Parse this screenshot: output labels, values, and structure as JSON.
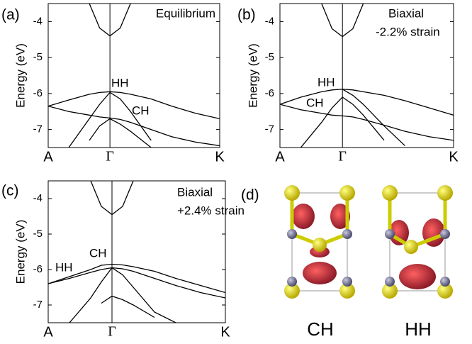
{
  "chart_data": [
    {
      "type": "line",
      "panel_label": "(a)",
      "ylabel": "Energy (eV)",
      "annotations": [
        "Equilibrium",
        "HH",
        "CH"
      ],
      "x": [
        0,
        0.12,
        0.24,
        0.3,
        0.36,
        0.42,
        0.48,
        0.6,
        0.72,
        0.86,
        1
      ],
      "xlim": [
        0,
        1
      ],
      "xticks": [
        {
          "value": 0,
          "label": "A"
        },
        {
          "value": 0.36,
          "label": "Γ"
        },
        {
          "value": 1,
          "label": "K"
        }
      ],
      "ylim": [
        -7.5,
        -3.5
      ],
      "yticks": [
        -7,
        -6,
        -5,
        -4
      ],
      "series": [
        {
          "color": "#000000",
          "values": [
            null,
            null,
            -3.5,
            -4.18,
            -4.4,
            -4.18,
            -3.5,
            null,
            null,
            null,
            null
          ]
        },
        {
          "color": "#000000",
          "values": [
            -6.35,
            -6.18,
            -6.02,
            -5.97,
            -5.95,
            -5.97,
            -6.02,
            -6.15,
            -6.35,
            -6.55,
            -6.7
          ]
        },
        {
          "color": "#000000",
          "values": [
            -6.35,
            -6.5,
            -6.6,
            -6.65,
            -6.68,
            -6.72,
            -6.8,
            -7.0,
            -7.2,
            -7.35,
            -7.45
          ]
        },
        {
          "color": "#000000",
          "values": [
            null,
            -7.5,
            -6.7,
            -6.3,
            -5.97,
            -6.15,
            -6.5,
            -7.3,
            null,
            null,
            null
          ]
        },
        {
          "color": "#000000",
          "values": [
            null,
            null,
            -7.3,
            -6.9,
            -6.7,
            -6.85,
            -7.05,
            -7.5,
            null,
            null,
            null
          ]
        }
      ]
    },
    {
      "type": "line",
      "panel_label": "(b)",
      "ylabel": "Energy (eV)",
      "annotations": [
        "Biaxial",
        "-2.2% strain",
        "HH",
        "CH"
      ],
      "x": [
        0,
        0.12,
        0.24,
        0.3,
        0.36,
        0.42,
        0.48,
        0.6,
        0.72,
        0.86,
        1
      ],
      "xlim": [
        0,
        1
      ],
      "xticks": [
        {
          "value": 0,
          "label": "A"
        },
        {
          "value": 0.36,
          "label": "Γ"
        },
        {
          "value": 1,
          "label": "K"
        }
      ],
      "ylim": [
        -7.5,
        -3.5
      ],
      "yticks": [
        -7,
        -6,
        -5,
        -4
      ],
      "series": [
        {
          "color": "#000000",
          "values": [
            null,
            null,
            -3.5,
            -4.2,
            -4.42,
            -4.2,
            -3.5,
            null,
            null,
            null,
            null
          ]
        },
        {
          "color": "#000000",
          "values": [
            -6.3,
            -6.1,
            -5.95,
            -5.9,
            -5.88,
            -5.9,
            -5.95,
            -6.05,
            -6.2,
            -6.4,
            -6.6
          ]
        },
        {
          "color": "#000000",
          "values": [
            -6.3,
            -6.45,
            -6.55,
            -6.6,
            -6.62,
            -6.65,
            -6.72,
            -6.88,
            -7.05,
            -7.2,
            -7.3
          ]
        },
        {
          "color": "#000000",
          "values": [
            null,
            -7.5,
            -6.8,
            -6.4,
            -6.1,
            -6.3,
            -6.6,
            -7.3,
            null,
            null,
            null
          ]
        },
        {
          "color": "#000000",
          "values": [
            null,
            null,
            null,
            null,
            -5.88,
            -6.05,
            -6.3,
            -6.9,
            -7.45,
            null,
            null
          ]
        }
      ]
    },
    {
      "type": "line",
      "panel_label": "(c)",
      "ylabel": "Energy (eV)",
      "annotations": [
        "Biaxial",
        "+2.4% strain",
        "HH",
        "CH"
      ],
      "x": [
        0,
        0.12,
        0.24,
        0.3,
        0.36,
        0.42,
        0.48,
        0.6,
        0.72,
        0.86,
        1
      ],
      "xlim": [
        0,
        1
      ],
      "xticks": [
        {
          "value": 0,
          "label": "A"
        },
        {
          "value": 0.36,
          "label": "Γ"
        },
        {
          "value": 1,
          "label": "K"
        }
      ],
      "ylim": [
        -7.5,
        -3.5
      ],
      "yticks": [
        -7,
        -6,
        -5,
        -4
      ],
      "series": [
        {
          "color": "#000000",
          "values": [
            null,
            null,
            -3.5,
            -4.22,
            -4.45,
            -4.22,
            -3.5,
            null,
            null,
            null,
            null
          ]
        },
        {
          "color": "#000000",
          "values": [
            -6.4,
            -6.2,
            -6.0,
            -5.88,
            -5.85,
            -5.87,
            -5.92,
            -6.05,
            -6.25,
            -6.45,
            -6.65
          ]
        },
        {
          "color": "#000000",
          "values": [
            -6.4,
            -6.25,
            -6.08,
            -6.0,
            -5.95,
            -5.98,
            -6.05,
            -6.25,
            -6.45,
            -6.65,
            -6.8
          ]
        },
        {
          "color": "#000000",
          "values": [
            null,
            -7.5,
            -6.8,
            -6.35,
            -5.95,
            -6.15,
            -6.5,
            -7.2,
            -7.5,
            null,
            null
          ]
        },
        {
          "color": "#000000",
          "values": [
            null,
            null,
            null,
            -6.95,
            -6.75,
            -6.85,
            -7.0,
            -7.35,
            null,
            null,
            null
          ]
        }
      ]
    }
  ],
  "panel_d": {
    "label": "(d)",
    "captions": [
      "CH",
      "HH"
    ]
  }
}
